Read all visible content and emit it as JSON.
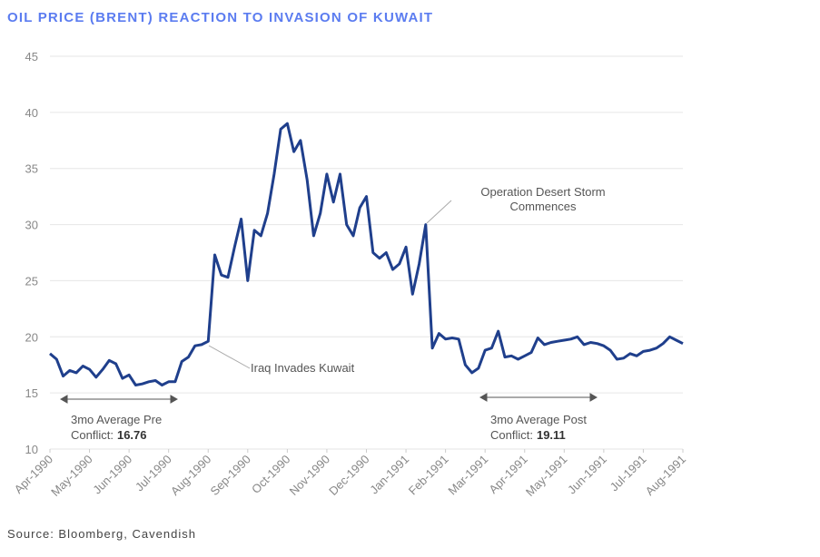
{
  "chart_data": {
    "type": "line",
    "title": "OIL PRICE (BRENT) REACTION TO INVASION OF KUWAIT",
    "source": "Source: Bloomberg, Cavendish",
    "categories": [
      "Apr-1990",
      null,
      null,
      null,
      null,
      null,
      "May-1990",
      null,
      null,
      null,
      null,
      null,
      "Jun-1990",
      null,
      null,
      null,
      null,
      null,
      "Jul-1990",
      null,
      null,
      null,
      null,
      null,
      "Aug-1990",
      null,
      null,
      null,
      null,
      null,
      "Sep-1990",
      null,
      null,
      null,
      null,
      null,
      "Oct-1990",
      null,
      null,
      null,
      null,
      null,
      "Nov-1990",
      null,
      null,
      null,
      null,
      null,
      "Dec-1990",
      null,
      null,
      null,
      null,
      null,
      "Jan-1991",
      null,
      null,
      null,
      null,
      null,
      "Feb-1991",
      null,
      null,
      null,
      null,
      null,
      "Mar-1991",
      null,
      null,
      null,
      null,
      null,
      "Apr-1991",
      null,
      null,
      null,
      null,
      null,
      "May-1991",
      null,
      null,
      null,
      null,
      null,
      "Jun-1991",
      null,
      null,
      null,
      null,
      null,
      "Jul-1991",
      null,
      null,
      null,
      null,
      null,
      "Aug-1991"
    ],
    "series": [
      {
        "name": "Brent",
        "color": "#1f3f8c",
        "values": [
          18.5,
          18.0,
          16.5,
          17.0,
          16.8,
          17.4,
          17.1,
          16.4,
          17.1,
          17.9,
          17.6,
          16.3,
          16.6,
          15.7,
          15.8,
          16.0,
          16.1,
          15.7,
          16.0,
          16.0,
          17.8,
          18.2,
          19.2,
          19.3,
          19.6,
          27.3,
          25.5,
          25.3,
          28.0,
          30.5,
          25.0,
          29.5,
          29.0,
          31.0,
          34.5,
          38.5,
          39.0,
          36.5,
          37.5,
          34.0,
          29.0,
          31.0,
          34.5,
          32.0,
          34.5,
          30.0,
          29.0,
          31.5,
          32.5,
          27.5,
          27.0,
          27.5,
          26.0,
          26.5,
          28.0,
          23.8,
          26.5,
          30.0,
          19.0,
          20.3,
          19.8,
          19.9,
          19.8,
          17.5,
          16.8,
          17.2,
          18.8,
          19.0,
          20.5,
          18.2,
          18.3,
          18.0,
          18.3,
          18.6,
          19.9,
          19.3,
          19.5,
          19.6,
          19.7,
          19.8,
          20.0,
          19.3,
          19.5,
          19.4,
          19.2,
          18.8,
          18.0,
          18.1,
          18.5,
          18.3,
          18.7,
          18.8,
          19.0,
          19.4,
          20.0,
          19.7,
          19.4
        ]
      }
    ],
    "ylim": [
      10,
      45
    ],
    "yticks": [
      10,
      15,
      20,
      25,
      30,
      35,
      40,
      45
    ],
    "grid": true,
    "annotations": [
      {
        "text": "Iraq Invades Kuwait"
      },
      {
        "lines": [
          "Operation Desert Storm",
          "Commences"
        ]
      }
    ],
    "pre_average": {
      "lines": [
        "3mo Average Pre",
        "Conflict:"
      ],
      "value": 16.76
    },
    "post_average": {
      "lines": [
        "3mo Average Post",
        "Conflict:"
      ],
      "value": 19.11
    }
  }
}
